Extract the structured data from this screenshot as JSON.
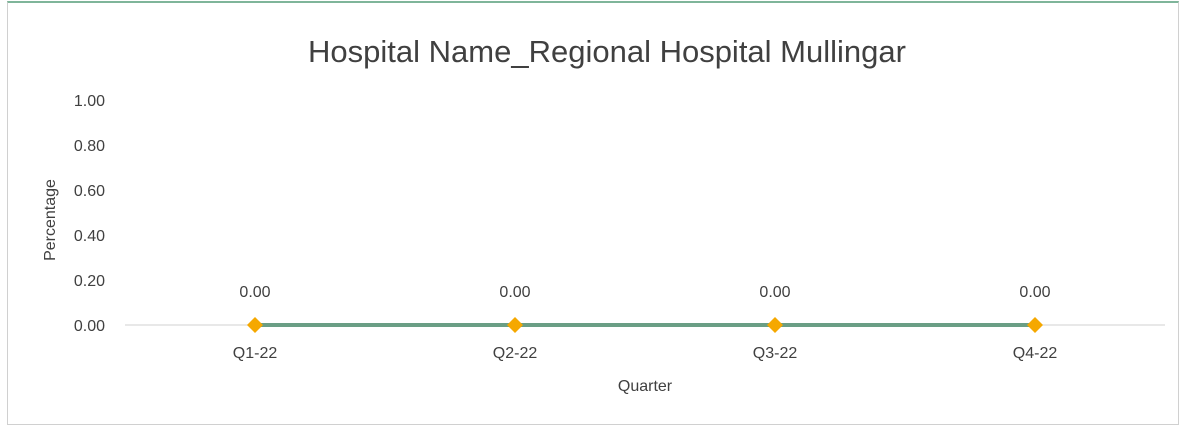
{
  "chart_data": {
    "type": "line",
    "title": "Hospital Name_Regional Hospital Mullingar",
    "xlabel": "Quarter",
    "ylabel": "Percentage",
    "categories": [
      "Q1-22",
      "Q2-22",
      "Q3-22",
      "Q4-22"
    ],
    "series": [
      {
        "values": [
          0.0,
          0.0,
          0.0,
          0.0
        ],
        "data_labels": [
          "0.00",
          "0.00",
          "0.00",
          "0.00"
        ],
        "line_color": "#6a9e85",
        "marker": "diamond",
        "marker_color": "#f5a800"
      }
    ],
    "ylim": [
      0,
      1
    ],
    "y_ticks": [
      0.0,
      0.2,
      0.4,
      0.6,
      0.8,
      1.0
    ],
    "y_tick_labels": [
      "0.00",
      "0.20",
      "0.40",
      "0.60",
      "0.80",
      "1.00"
    ],
    "grid": false,
    "legend": "none",
    "axis_color": "#d9d9d9"
  }
}
